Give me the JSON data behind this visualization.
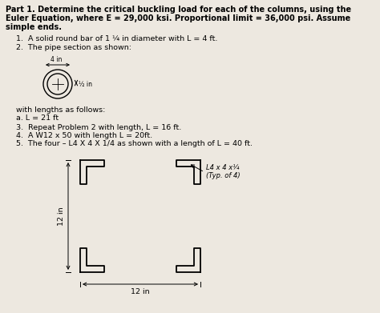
{
  "title_line1": "Part 1. Determine the critical buckling load for each of the columns, using the",
  "title_line2": "Euler Equation, where E = 29,000 ksi. Proportional limit = 36,000 psi. Assume",
  "title_line3": "simple ends.",
  "item1": "1.  A solid round bar of 1 ¼ in diameter with L = 4 ft.",
  "item2": "2.  The pipe section as shown:",
  "pipe_label_top": "4 in",
  "pipe_label_right": "½ in",
  "after_pipe1": "with lengths as follows:",
  "after_pipe2": "a. L = 21 ft",
  "item3": "3.  Repeat Problem 2 with length, L = 16 ft.",
  "item4": "4.  A W12 x 50 with length L = 20ft.",
  "item5": "5.  The four – L4 X 4 X 1/4 as shown with a length of L = 40 ft.",
  "label_12in_left": "12 in",
  "label_12in_bottom": "12 in",
  "label_angle_line1": "L4 x 4 x¼",
  "label_angle_line2": "(Typ. of 4)",
  "bg_color": "#ede8e0"
}
